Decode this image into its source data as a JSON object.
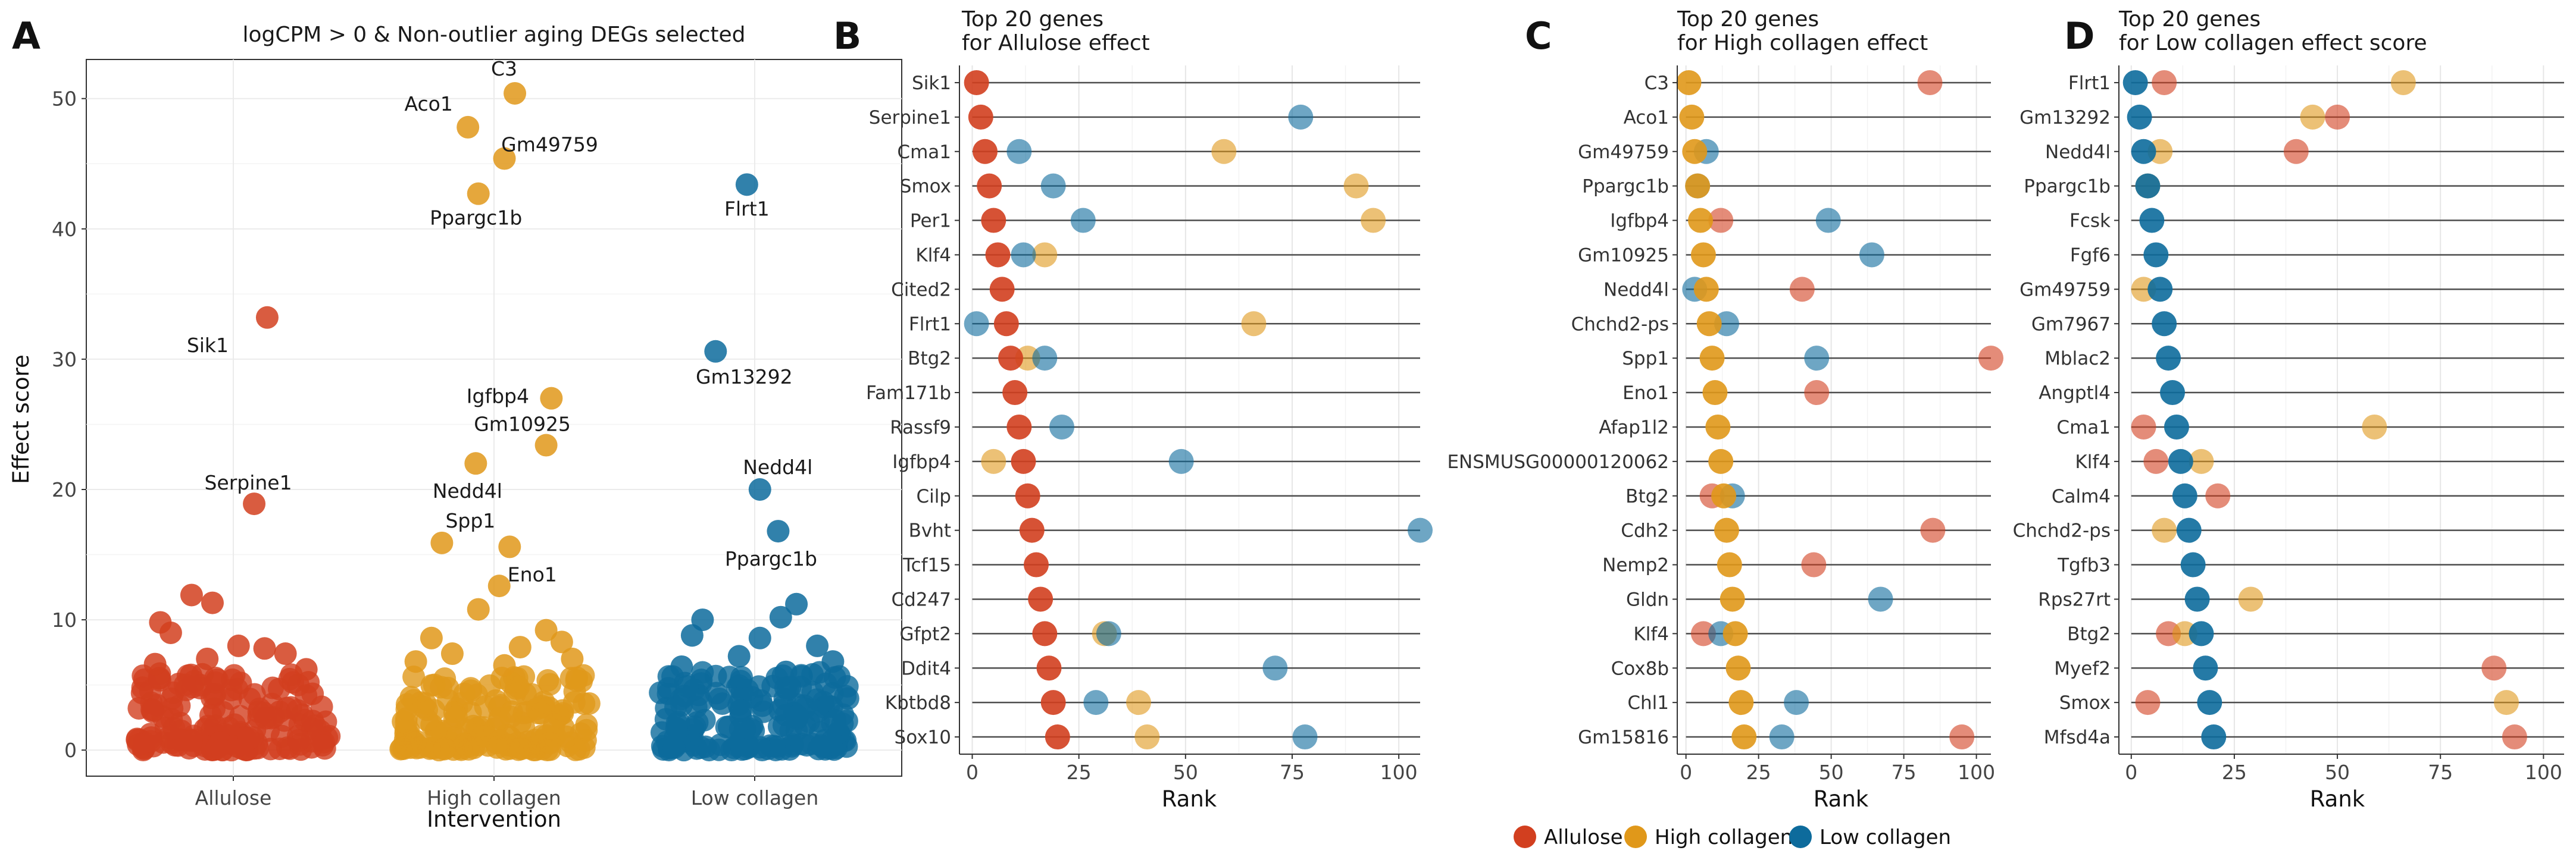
{
  "figure_labels": [
    "A",
    "B",
    "C",
    "D"
  ],
  "legend": {
    "items": [
      {
        "name": "Allulose",
        "color": "#d23f1f"
      },
      {
        "name": "High collagen",
        "color": "#e0981a"
      },
      {
        "name": "Low collagen",
        "color": "#0d6b9c"
      }
    ]
  },
  "chart_data": [
    {
      "id": "A",
      "type": "scatter",
      "title": "logCPM > 0 & Non-outlier aging DEGs selected",
      "xlabel": "Intervention",
      "ylabel": "Effect score",
      "categories": [
        "Allulose",
        "High collagen",
        "Low collagen"
      ],
      "ylim": [
        -2,
        53
      ],
      "yticks": [
        0,
        10,
        20,
        30,
        40,
        50
      ],
      "grid": true,
      "colors": [
        "#d23f1f",
        "#e0981a",
        "#0d6b9c"
      ],
      "labeled_points": [
        {
          "group": 0,
          "label": "Sik1",
          "x": 0.13,
          "y": 33.2
        },
        {
          "group": 0,
          "label": "Serpine1",
          "x": 0.08,
          "y": 18.9
        },
        {
          "group": 1,
          "label": "C3",
          "x": 0.08,
          "y": 50.4
        },
        {
          "group": 1,
          "label": "Aco1",
          "x": -0.1,
          "y": 47.8
        },
        {
          "group": 1,
          "label": "Gm49759",
          "x": 0.04,
          "y": 45.4
        },
        {
          "group": 1,
          "label": "Ppargc1b",
          "x": -0.06,
          "y": 42.7
        },
        {
          "group": 1,
          "label": "Igfbp4",
          "x": 0.22,
          "y": 27.0
        },
        {
          "group": 1,
          "label": "Gm10925",
          "x": 0.2,
          "y": 23.4
        },
        {
          "group": 1,
          "label": "Nedd4l",
          "x": -0.07,
          "y": 22.0
        },
        {
          "group": 1,
          "label": "Spp1",
          "x": -0.2,
          "y": 15.9
        },
        {
          "group": 1,
          "label": "Eno1",
          "x": 0.06,
          "y": 15.6
        },
        {
          "group": 2,
          "label": "Flrt1",
          "x": -0.03,
          "y": 43.4
        },
        {
          "group": 2,
          "label": "Gm13292",
          "x": -0.15,
          "y": 30.6
        },
        {
          "group": 2,
          "label": "Nedd4l",
          "x": 0.02,
          "y": 20.0
        },
        {
          "group": 2,
          "label": "Ppargc1b",
          "x": 0.09,
          "y": 16.8
        }
      ],
      "unlabeled_points": [
        {
          "group": 0,
          "x": -0.16,
          "y": 11.9
        },
        {
          "group": 0,
          "x": -0.08,
          "y": 11.3
        },
        {
          "group": 0,
          "x": -0.28,
          "y": 9.8
        },
        {
          "group": 0,
          "x": -0.24,
          "y": 9.0
        },
        {
          "group": 0,
          "x": 0.02,
          "y": 8.0
        },
        {
          "group": 0,
          "x": 0.12,
          "y": 7.8
        },
        {
          "group": 0,
          "x": 0.2,
          "y": 7.4
        },
        {
          "group": 0,
          "x": -0.1,
          "y": 7.0
        },
        {
          "group": 0,
          "x": -0.3,
          "y": 6.6
        },
        {
          "group": 0,
          "x": 0.28,
          "y": 6.2
        },
        {
          "group": 1,
          "x": 0.02,
          "y": 12.6
        },
        {
          "group": 1,
          "x": -0.06,
          "y": 10.8
        },
        {
          "group": 1,
          "x": 0.2,
          "y": 9.2
        },
        {
          "group": 1,
          "x": -0.24,
          "y": 8.6
        },
        {
          "group": 1,
          "x": 0.26,
          "y": 8.3
        },
        {
          "group": 1,
          "x": 0.1,
          "y": 7.9
        },
        {
          "group": 1,
          "x": -0.16,
          "y": 7.4
        },
        {
          "group": 1,
          "x": 0.3,
          "y": 7.0
        },
        {
          "group": 1,
          "x": -0.3,
          "y": 6.8
        },
        {
          "group": 1,
          "x": 0.04,
          "y": 6.5
        },
        {
          "group": 2,
          "x": 0.16,
          "y": 11.2
        },
        {
          "group": 2,
          "x": 0.1,
          "y": 10.2
        },
        {
          "group": 2,
          "x": -0.2,
          "y": 10.0
        },
        {
          "group": 2,
          "x": -0.24,
          "y": 8.8
        },
        {
          "group": 2,
          "x": 0.02,
          "y": 8.6
        },
        {
          "group": 2,
          "x": 0.24,
          "y": 8.0
        },
        {
          "group": 2,
          "x": -0.06,
          "y": 7.2
        },
        {
          "group": 2,
          "x": 0.3,
          "y": 6.8
        },
        {
          "group": 2,
          "x": -0.28,
          "y": 6.4
        },
        {
          "group": 2,
          "x": 0.12,
          "y": 6.0
        }
      ],
      "background_points_per_group": 170,
      "background_ymax": 6.0
    },
    {
      "id": "B",
      "type": "dot",
      "title": "Top 20 genes",
      "subtitle": "for Allulose effect",
      "xlabel": "Rank",
      "xlim": [
        -3,
        105
      ],
      "xticks": [
        0,
        25,
        50,
        75,
        100
      ],
      "genes": [
        "Sik1",
        "Serpine1",
        "Cma1",
        "Smox",
        "Per1",
        "Klf4",
        "Cited2",
        "Flrt1",
        "Btg2",
        "Fam171b",
        "Rassf9",
        "Igfbp4",
        "Cilp",
        "Bvht",
        "Tcf15",
        "Cd247",
        "Gfpt2",
        "Ddit4",
        "Kbtbd8",
        "Sox10"
      ],
      "series": [
        {
          "name": "High collagen",
          "values": [
            null,
            null,
            59,
            90,
            94,
            17,
            null,
            66,
            13,
            null,
            null,
            5,
            null,
            null,
            null,
            null,
            31,
            null,
            39,
            41
          ]
        },
        {
          "name": "Low collagen",
          "values": [
            null,
            77,
            11,
            19,
            26,
            12,
            null,
            1,
            17,
            null,
            21,
            49,
            null,
            105,
            null,
            null,
            32,
            71,
            29,
            78
          ]
        },
        {
          "name": "Allulose",
          "values": [
            1,
            2,
            3,
            4,
            5,
            6,
            7,
            8,
            9,
            10,
            11,
            12,
            13,
            14,
            15,
            16,
            17,
            18,
            19,
            20
          ]
        }
      ]
    },
    {
      "id": "C",
      "type": "dot",
      "title": "Top 20 genes",
      "subtitle": "for High collagen effect",
      "xlabel": "Rank",
      "xlim": [
        -3,
        105
      ],
      "xticks": [
        0,
        25,
        50,
        75,
        100
      ],
      "genes": [
        "C3",
        "Aco1",
        "Gm49759",
        "Ppargc1b",
        "Igfbp4",
        "Gm10925",
        "Nedd4l",
        "Chchd2-ps",
        "Spp1",
        "Eno1",
        "Afap1l2",
        "ENSMUSG00000120062",
        "Btg2",
        "Cdh2",
        "Nemp2",
        "Gldn",
        "Klf4",
        "Cox8b",
        "Chl1",
        "Gm15816"
      ],
      "series": [
        {
          "name": "Allulose",
          "values": [
            84,
            null,
            null,
            null,
            12,
            null,
            40,
            null,
            105,
            45,
            null,
            null,
            9,
            85,
            44,
            null,
            6,
            null,
            null,
            95
          ]
        },
        {
          "name": "Low collagen",
          "values": [
            null,
            null,
            7,
            4,
            49,
            64,
            3,
            14,
            45,
            null,
            null,
            null,
            16,
            null,
            null,
            67,
            12,
            null,
            38,
            33
          ]
        },
        {
          "name": "High collagen",
          "values": [
            1,
            2,
            3,
            4,
            5,
            6,
            7,
            8,
            9,
            10,
            11,
            12,
            13,
            14,
            15,
            16,
            17,
            18,
            19,
            20
          ]
        }
      ]
    },
    {
      "id": "D",
      "type": "dot",
      "title": "Top 20 genes",
      "subtitle": "for Low collagen effect score",
      "xlabel": "Rank",
      "xlim": [
        -3,
        105
      ],
      "xticks": [
        0,
        25,
        50,
        75,
        100
      ],
      "genes": [
        "Flrt1",
        "Gm13292",
        "Nedd4l",
        "Ppargc1b",
        "Fcsk",
        "Fgf6",
        "Gm49759",
        "Gm7967",
        "Mblac2",
        "Angptl4",
        "Cma1",
        "Klf4",
        "Calm4",
        "Chchd2-ps",
        "Tgfb3",
        "Rps27rt",
        "Btg2",
        "Myef2",
        "Smox",
        "Mfsd4a"
      ],
      "series": [
        {
          "name": "Allulose",
          "values": [
            8,
            50,
            40,
            null,
            null,
            null,
            null,
            null,
            null,
            null,
            3,
            6,
            21,
            null,
            null,
            null,
            9,
            88,
            4,
            93
          ]
        },
        {
          "name": "High collagen",
          "values": [
            66,
            44,
            7,
            4,
            null,
            null,
            3,
            null,
            null,
            null,
            59,
            17,
            null,
            8,
            null,
            29,
            13,
            null,
            91,
            null
          ]
        },
        {
          "name": "Low collagen",
          "values": [
            1,
            2,
            3,
            4,
            5,
            6,
            7,
            8,
            9,
            10,
            11,
            12,
            13,
            14,
            15,
            16,
            17,
            18,
            19,
            20
          ]
        }
      ]
    }
  ]
}
